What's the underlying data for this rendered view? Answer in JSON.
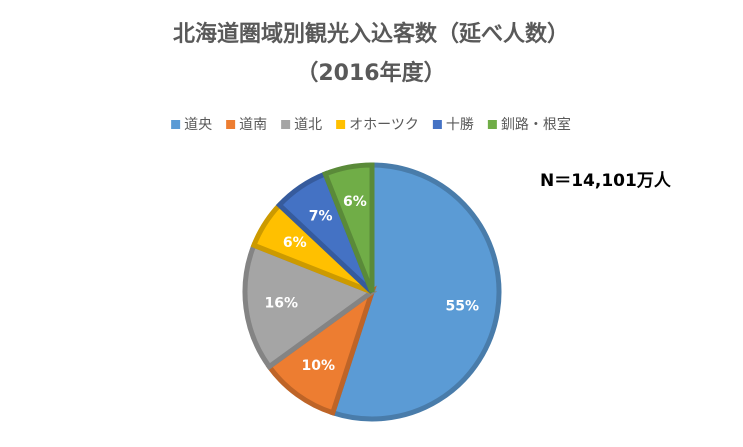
{
  "chart_data": {
    "type": "pie",
    "title": "北海道圏域別観光入込客数（延べ人数）",
    "subtitle": "（2016年度）",
    "annotation": "N＝14,101万人",
    "legend_position": "top",
    "categories": [
      "道央",
      "道南",
      "道北",
      "オホーツク",
      "十勝",
      "釧路・根室"
    ],
    "values": [
      55,
      10,
      16,
      6,
      7,
      6
    ],
    "value_labels": [
      "55%",
      "10%",
      "16%",
      "6%",
      "7%",
      "6%"
    ],
    "colors": [
      "#5b9bd5",
      "#ed7d31",
      "#a5a5a5",
      "#ffc000",
      "#4472c4",
      "#70ad47"
    ]
  }
}
